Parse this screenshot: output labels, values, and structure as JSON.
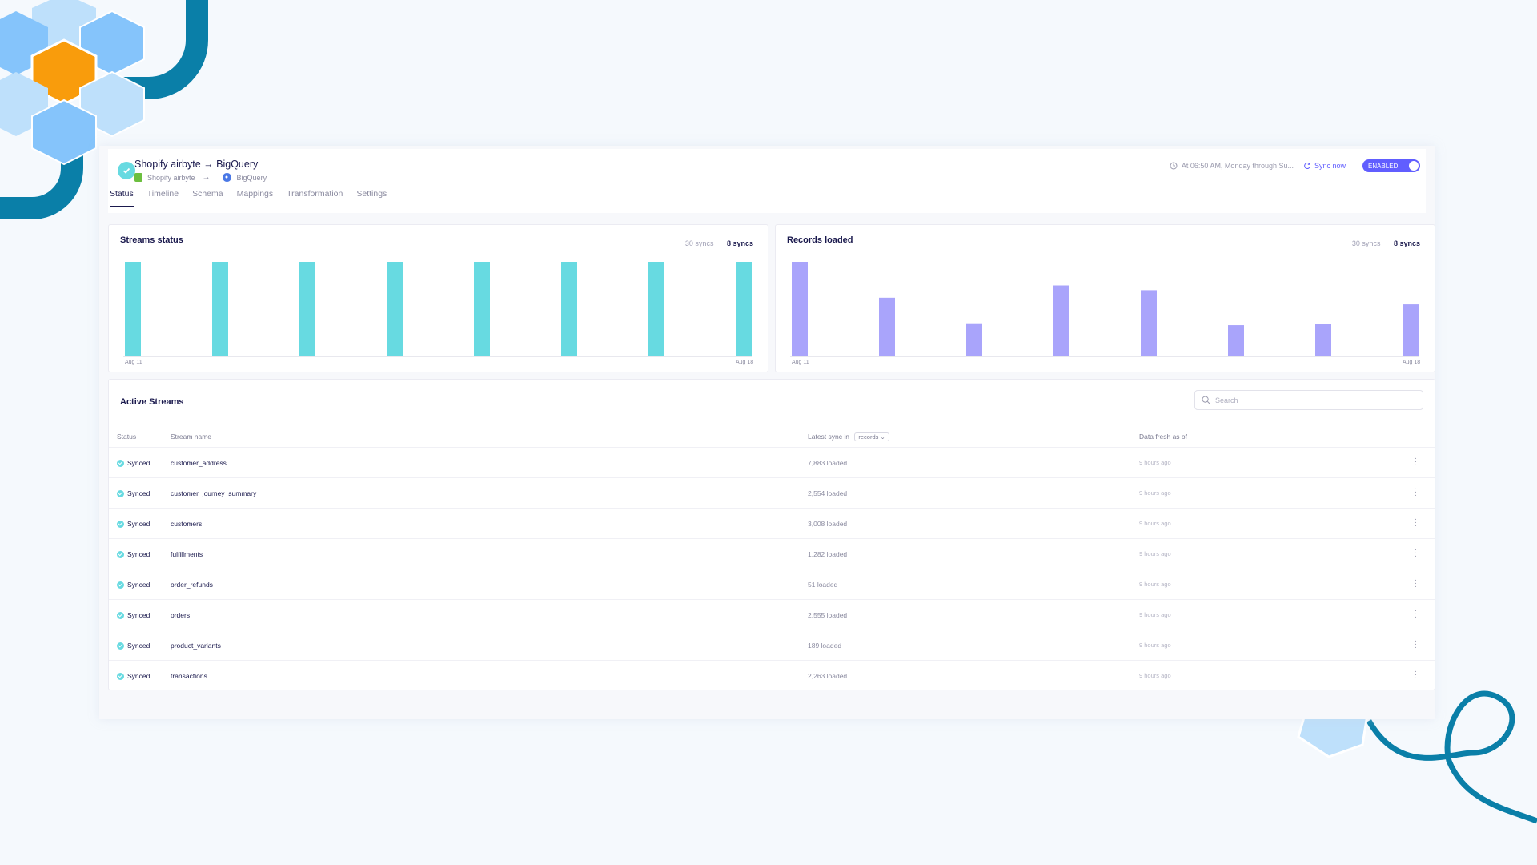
{
  "connection": {
    "title": "Shopify airbyte → BigQuery",
    "source": "Shopify airbyte",
    "destination": "BigQuery",
    "schedule": "At 06:50 AM, Monday through Su...",
    "sync_now": "Sync now",
    "toggle": "ENABLED"
  },
  "tabs": [
    "Status",
    "Timeline",
    "Schema",
    "Mappings",
    "Transformation",
    "Settings"
  ],
  "streams_status": {
    "title": "Streams status",
    "sync_opts": [
      "30 syncs",
      "8 syncs"
    ],
    "x_start": "Aug 11",
    "x_end": "Aug 18",
    "bar_color": "#67dae1"
  },
  "records_loaded": {
    "title": "Records loaded",
    "sync_opts": [
      "30 syncs",
      "8 syncs"
    ],
    "x_start": "Aug 11",
    "x_end": "Aug 18",
    "bar_color": "#a9a4fb"
  },
  "chart_data": [
    {
      "type": "bar",
      "title": "Streams status",
      "categories": [
        "Aug 11",
        "",
        "",
        "",
        "",
        "",
        "",
        "Aug 18"
      ],
      "values": [
        8,
        8,
        8,
        8,
        8,
        8,
        8,
        8
      ],
      "ylim": [
        0,
        8
      ],
      "grid": false
    },
    {
      "type": "bar",
      "title": "Records loaded",
      "categories": [
        "Aug 11",
        "",
        "",
        "",
        "",
        "",
        "",
        "Aug 18"
      ],
      "values": [
        100,
        62,
        35,
        75,
        70,
        33,
        34,
        55
      ],
      "ylim": [
        0,
        100
      ],
      "grid": false
    }
  ],
  "table": {
    "title": "Active Streams",
    "search_placeholder": "Search",
    "headers": {
      "status": "Status",
      "name": "Stream name",
      "latest": "Latest sync in",
      "latest_select": "records",
      "fresh": "Data fresh as of"
    },
    "rows": [
      {
        "status": "Synced",
        "name": "customer_address",
        "loaded": "7,883 loaded",
        "fresh": "9 hours ago"
      },
      {
        "status": "Synced",
        "name": "customer_journey_summary",
        "loaded": "2,554 loaded",
        "fresh": "9 hours ago"
      },
      {
        "status": "Synced",
        "name": "customers",
        "loaded": "3,008 loaded",
        "fresh": "9 hours ago"
      },
      {
        "status": "Synced",
        "name": "fulfillments",
        "loaded": "1,282 loaded",
        "fresh": "9 hours ago"
      },
      {
        "status": "Synced",
        "name": "order_refunds",
        "loaded": "51 loaded",
        "fresh": "9 hours ago"
      },
      {
        "status": "Synced",
        "name": "orders",
        "loaded": "2,555 loaded",
        "fresh": "9 hours ago"
      },
      {
        "status": "Synced",
        "name": "product_variants",
        "loaded": "189 loaded",
        "fresh": "9 hours ago"
      },
      {
        "status": "Synced",
        "name": "transactions",
        "loaded": "2,263 loaded",
        "fresh": "9 hours ago"
      }
    ]
  }
}
